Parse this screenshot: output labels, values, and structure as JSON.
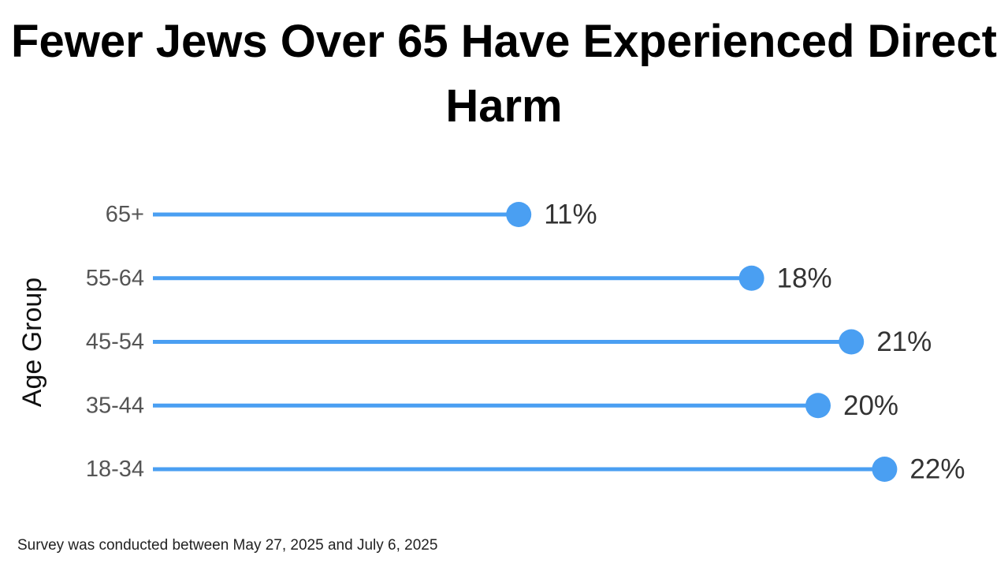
{
  "chart_data": {
    "type": "lollipop",
    "title": "Fewer Jews Over 65 Have Experienced Direct Harm",
    "ylabel": "Age Group",
    "xlabel": "",
    "categories": [
      "65+",
      "55-64",
      "45-54",
      "35-44",
      "18-34"
    ],
    "values": [
      11,
      18,
      21,
      20,
      22
    ],
    "value_labels": [
      "11%",
      "18%",
      "21%",
      "20%",
      "22%"
    ],
    "unit": "%",
    "orientation": "horizontal",
    "grid": false,
    "legend": "none",
    "color": "#4a9ff2"
  },
  "footnote": "Survey was conducted between May 27, 2025 and July 6, 2025"
}
